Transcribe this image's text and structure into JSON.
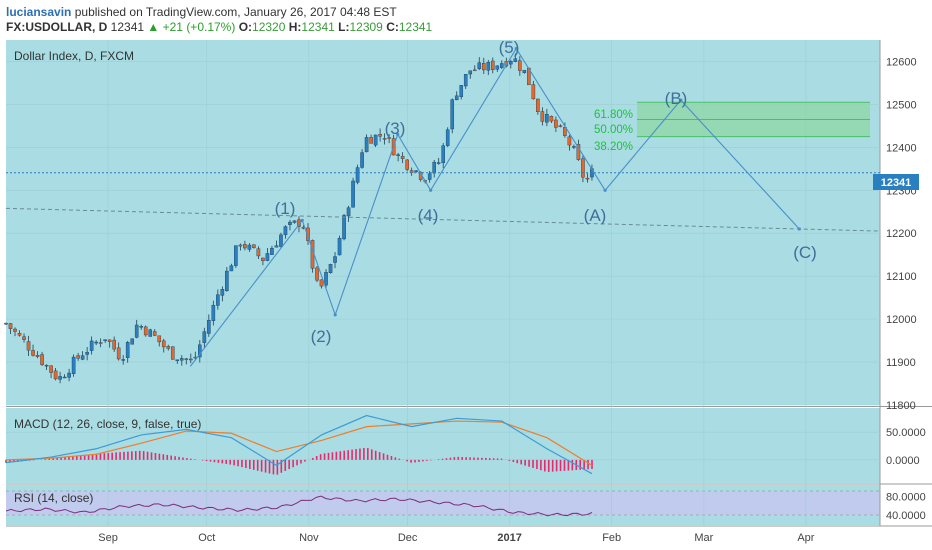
{
  "header": {
    "author": "luciansavin",
    "published_text": "published on TradingView.com, January 26, 2017 04:48 EST",
    "symbol": "FX:USDOLLAR, D",
    "last": "12341",
    "change": "+21 (+0.17%)",
    "open_label": "O:",
    "open": "12320",
    "high_label": "H:",
    "high": "12341",
    "low_label": "L:",
    "low": "12309",
    "close_label": "C:",
    "close": "12341"
  },
  "main_pane": {
    "title": "Dollar Index, D, FXCM",
    "price_tag": "12341",
    "y_ticks": [
      "12600",
      "12500",
      "12400",
      "12300",
      "12200",
      "12100",
      "12000",
      "11900",
      "11800"
    ]
  },
  "macd_pane": {
    "title": "MACD (12, 26, close, 9, false, true)",
    "y_ticks": [
      "50.0000",
      "0.0000"
    ]
  },
  "rsi_pane": {
    "title": "RSI (14, close)",
    "y_ticks": [
      "80.0000",
      "40.0000"
    ]
  },
  "x_ticks": [
    "Sep",
    "Oct",
    "Nov",
    "Dec",
    "2017",
    "Feb",
    "Mar",
    "Apr"
  ],
  "fib_labels": [
    "61.80%",
    "50.00%",
    "38.20%"
  ],
  "wave_labels": [
    "(1)",
    "(2)",
    "(3)",
    "(4)",
    "(5)",
    "(A)",
    "(B)",
    "(C)"
  ],
  "colors": {
    "bg_chart": "#a9dde3",
    "bull": "#2a7fc0",
    "bear": "#e6672a",
    "wave_line": "#4a8fc9",
    "fib_fill": "#8fd6a4",
    "fib_text": "#22c13a",
    "macd_line": "#3c9bd6",
    "signal_line": "#ef7d2b",
    "hist": "#e8296e",
    "rsi_line": "#7b2d7b",
    "rsi_band": "#c9c4f0"
  },
  "chart_data": [
    {
      "type": "candlestick",
      "title": "Dollar Index, D, FXCM",
      "ylim": [
        11800,
        12650
      ],
      "x_axis": [
        "Sep",
        "Oct",
        "Nov",
        "Dec",
        "2017",
        "Feb",
        "Mar",
        "Apr"
      ],
      "approx_close_path": [
        {
          "date": "2016-08-01",
          "close": 11990
        },
        {
          "date": "2016-08-10",
          "close": 11920
        },
        {
          "date": "2016-08-17",
          "close": 11860
        },
        {
          "date": "2016-08-24",
          "close": 11920
        },
        {
          "date": "2016-08-31",
          "close": 11960
        },
        {
          "date": "2016-09-05",
          "close": 11910
        },
        {
          "date": "2016-09-10",
          "close": 11990
        },
        {
          "date": "2016-09-15",
          "close": 11960
        },
        {
          "date": "2016-09-20",
          "close": 11920
        },
        {
          "date": "2016-09-27",
          "close": 11900
        },
        {
          "date": "2016-10-04",
          "close": 12050
        },
        {
          "date": "2016-10-11",
          "close": 12180
        },
        {
          "date": "2016-10-18",
          "close": 12140
        },
        {
          "date": "2016-10-25",
          "close": 12210
        },
        {
          "date": "2016-10-30",
          "close": 12230
        },
        {
          "date": "2016-11-04",
          "close": 12060
        },
        {
          "date": "2016-11-09",
          "close": 12150
        },
        {
          "date": "2016-11-14",
          "close": 12300
        },
        {
          "date": "2016-11-18",
          "close": 12420
        },
        {
          "date": "2016-11-24",
          "close": 12430
        },
        {
          "date": "2016-11-28",
          "close": 12380
        },
        {
          "date": "2016-12-06",
          "close": 12330
        },
        {
          "date": "2016-12-11",
          "close": 12370
        },
        {
          "date": "2016-12-15",
          "close": 12520
        },
        {
          "date": "2016-12-20",
          "close": 12580
        },
        {
          "date": "2016-12-27",
          "close": 12590
        },
        {
          "date": "2017-01-02",
          "close": 12610
        },
        {
          "date": "2017-01-06",
          "close": 12570
        },
        {
          "date": "2017-01-10",
          "close": 12480
        },
        {
          "date": "2017-01-16",
          "close": 12440
        },
        {
          "date": "2017-01-20",
          "close": 12400
        },
        {
          "date": "2017-01-24",
          "close": 12320
        },
        {
          "date": "2017-01-26",
          "close": 12341
        }
      ],
      "current_price": 12341,
      "elliott_wave_points": [
        {
          "label": "(1)",
          "date": "2016-10-30",
          "price": 12230
        },
        {
          "label": "(2)",
          "date": "2016-11-09",
          "price": 12010
        },
        {
          "label": "(3)",
          "date": "2016-11-28",
          "price": 12430
        },
        {
          "label": "(4)",
          "date": "2016-12-08",
          "price": 12300
        },
        {
          "label": "(5)",
          "date": "2017-01-03",
          "price": 12630
        },
        {
          "label": "(A)",
          "date": "2017-01-30",
          "price": 12300
        },
        {
          "label": "(B)",
          "date": "2017-02-22",
          "price": 12510
        },
        {
          "label": "(C)",
          "date": "2017-03-30",
          "price": 12210
        }
      ],
      "fib_levels": [
        {
          "label": "61.80%",
          "price": 12505
        },
        {
          "label": "50.00%",
          "price": 12465
        },
        {
          "label": "38.20%",
          "price": 12425
        }
      ]
    },
    {
      "type": "line",
      "title": "MACD (12, 26, close, 9, false, true)",
      "series": [
        {
          "name": "MACD",
          "values": [
            -5,
            5,
            20,
            45,
            55,
            40,
            -10,
            45,
            80,
            60,
            75,
            70,
            20,
            -25
          ]
        },
        {
          "name": "Signal",
          "values": [
            0,
            3,
            10,
            30,
            52,
            48,
            15,
            35,
            60,
            65,
            70,
            68,
            40,
            -10
          ]
        }
      ]
    },
    {
      "type": "line",
      "title": "RSI (14, close)",
      "band": [
        40,
        80
      ],
      "series": [
        {
          "name": "RSI",
          "values": [
            48,
            52,
            45,
            58,
            62,
            55,
            50,
            56,
            78,
            70,
            74,
            67,
            60,
            45,
            40,
            42
          ]
        }
      ]
    }
  ]
}
